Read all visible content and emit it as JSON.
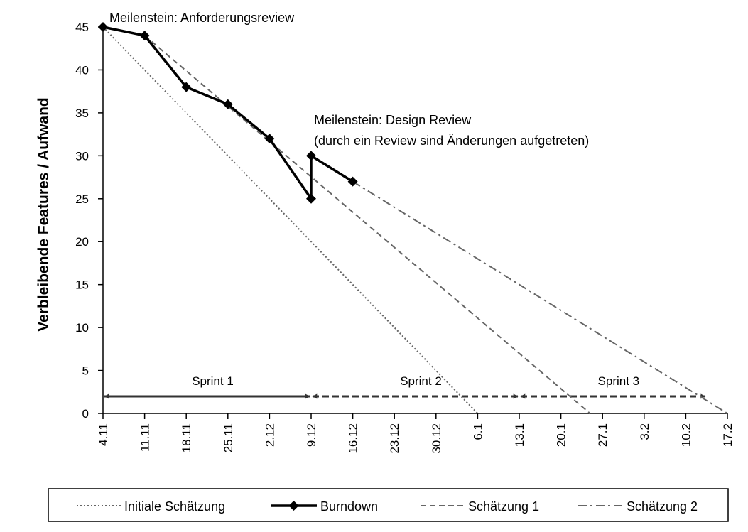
{
  "chart_data": {
    "type": "line",
    "title": "",
    "xlabel": "",
    "ylabel": "Verbleibende Features /  Aufwand",
    "categories": [
      "4.11",
      "11.11",
      "18.11",
      "25.11",
      "2.12",
      "9.12",
      "16.12",
      "23.12",
      "30.12",
      "6.1",
      "13.1",
      "20.1",
      "27.1",
      "3.2",
      "10.2",
      "17.2"
    ],
    "ylim": [
      0,
      45
    ],
    "yticks": [
      0,
      5,
      10,
      15,
      20,
      25,
      30,
      35,
      40,
      45
    ],
    "grid": false,
    "legend_position": "bottom",
    "series": [
      {
        "name": "Initiale Schätzung",
        "style": "dotted",
        "color": "#666666",
        "points": [
          [
            0,
            45
          ],
          [
            9,
            0
          ]
        ]
      },
      {
        "name": "Burndown",
        "style": "solid-diamond",
        "color": "#000000",
        "points": [
          [
            0,
            45
          ],
          [
            1,
            44
          ],
          [
            2,
            38
          ],
          [
            3,
            36
          ],
          [
            4,
            32
          ],
          [
            5,
            25
          ],
          [
            5,
            30
          ],
          [
            6,
            27
          ]
        ]
      },
      {
        "name": "Schätzung 1",
        "style": "dashed",
        "color": "#666666",
        "points": [
          [
            1,
            44
          ],
          [
            11.7,
            0
          ]
        ]
      },
      {
        "name": "Schätzung 2",
        "style": "dashdot",
        "color": "#666666",
        "points": [
          [
            6,
            27
          ],
          [
            15,
            0
          ]
        ]
      }
    ],
    "annotations": [
      {
        "text": "Meilenstein: Anforderungsreview",
        "x": 0,
        "y": 45
      },
      {
        "text": "Meilenstein: Design Review",
        "x": 5,
        "y": 30
      },
      {
        "text": "(durch ein Review sind Änderungen aufgetreten)",
        "x": 5,
        "y": 30
      }
    ],
    "sprints": [
      {
        "label": "Sprint 1",
        "start": 0,
        "end": 5,
        "style": "solid"
      },
      {
        "label": "Sprint 2",
        "start": 5,
        "end": 10,
        "style": "dashed"
      },
      {
        "label": "Sprint 3",
        "start": 10,
        "end": 14.5,
        "style": "dashed"
      }
    ]
  }
}
